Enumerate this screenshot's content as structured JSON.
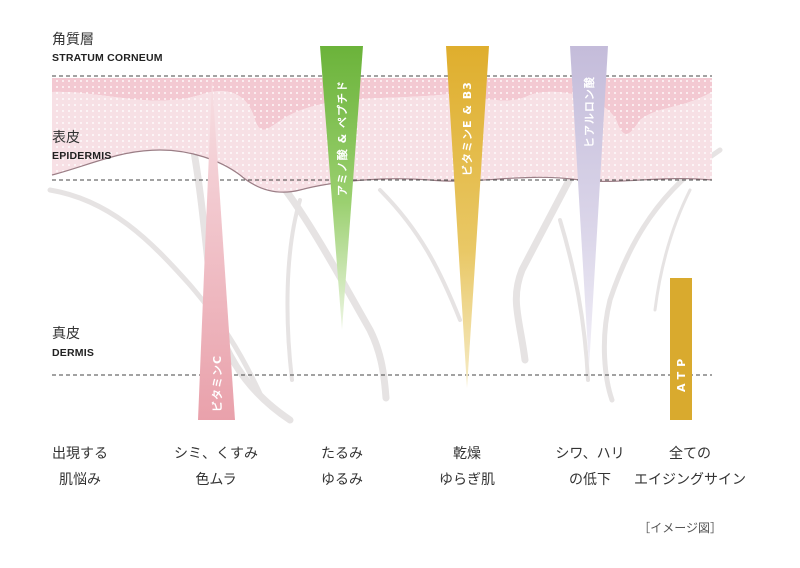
{
  "layers": [
    {
      "ja": "角質層",
      "en": "STRATUM CORNEUM"
    },
    {
      "ja": "表皮",
      "en": "EPIDERMIS"
    },
    {
      "ja": "真皮",
      "en": "DERMIS"
    }
  ],
  "ingredients": [
    {
      "label": "ビタミンC",
      "color": "#e9a1ab",
      "reaches": "dermis"
    },
    {
      "label": "アミノ酸 & ペプチド",
      "color": "#7cba42",
      "reaches": "dermis"
    },
    {
      "label": "ビタミンE & B3",
      "color": "#e1b43c",
      "reaches": "dermis"
    },
    {
      "label": "ヒアルロン酸",
      "color": "#c9c3dd",
      "reaches": "dermis"
    },
    {
      "label": "ATP",
      "color": "#d9aa2e",
      "reaches": "dermis"
    }
  ],
  "concerns": [
    {
      "line1": "出現する",
      "line2": "肌悩み"
    },
    {
      "line1": "シミ、くすみ",
      "line2": "色ムラ"
    },
    {
      "line1": "たるみ",
      "line2": "ゆるみ"
    },
    {
      "line1": "乾燥",
      "line2": "ゆらぎ肌"
    },
    {
      "line1": "シワ、ハリ",
      "line2": "の低下"
    },
    {
      "line1": "全ての",
      "line2": "エイジングサイン"
    }
  ],
  "note": "［イメージ図］",
  "colors": {
    "skin": "#f4d3da",
    "skin_edge": "#9b7e86",
    "branch": "#e6e3e3",
    "dash": "#444444"
  }
}
